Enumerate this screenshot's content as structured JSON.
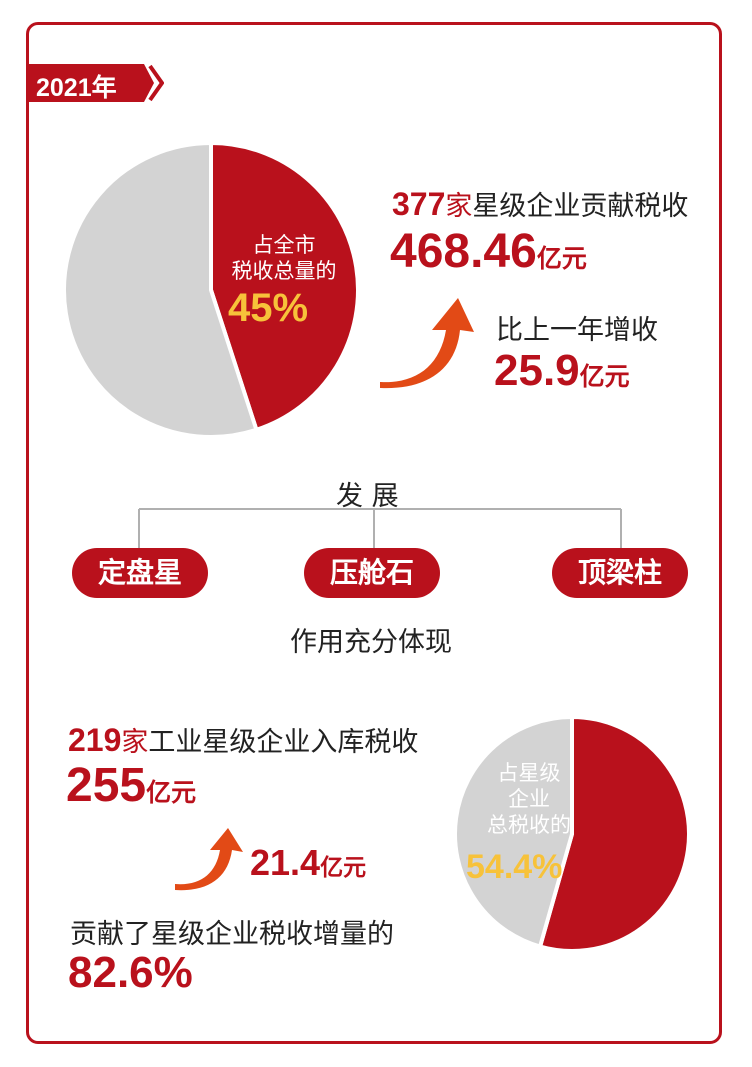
{
  "year_tag": "2021年",
  "colors": {
    "accent": "#b9111c",
    "grey": "#d3d3d3",
    "highlight": "#f7c23a",
    "arrow": "#e24a16"
  },
  "section1": {
    "pie_label_line1": "占全市",
    "pie_label_line2": "税收总量的",
    "pie_percent": "45%",
    "count_num": "377",
    "count_unit": "家",
    "count_text": "星级企业贡献税收",
    "tax_value": "468.46",
    "tax_unit": "亿元",
    "growth_label": "比上一年增收",
    "growth_value": "25.9",
    "growth_unit": "亿元"
  },
  "development": {
    "title": "发 展",
    "items": [
      "定盘星",
      "压舱石",
      "顶梁柱"
    ],
    "caption": "作用充分体现"
  },
  "section2": {
    "count_num": "219",
    "count_unit": "家",
    "count_text": "工业星级企业入库税收",
    "tax_value": "255",
    "tax_unit": "亿元",
    "growth_value": "21.4",
    "growth_unit": "亿元",
    "contrib_text": "贡献了星级企业税收增量的",
    "contrib_percent": "82.6%",
    "pie_label_line1": "占星级",
    "pie_label_line2": "企业",
    "pie_label_line3": "总税收的",
    "pie_percent": "54.4%"
  },
  "chart_data": [
    {
      "type": "pie",
      "categories": [
        "占全市税收总量的",
        ""
      ],
      "values": [
        45,
        55
      ]
    },
    {
      "type": "pie",
      "categories": [
        "占星级企业总税收的",
        ""
      ],
      "values": [
        54.4,
        45.6
      ]
    }
  ]
}
